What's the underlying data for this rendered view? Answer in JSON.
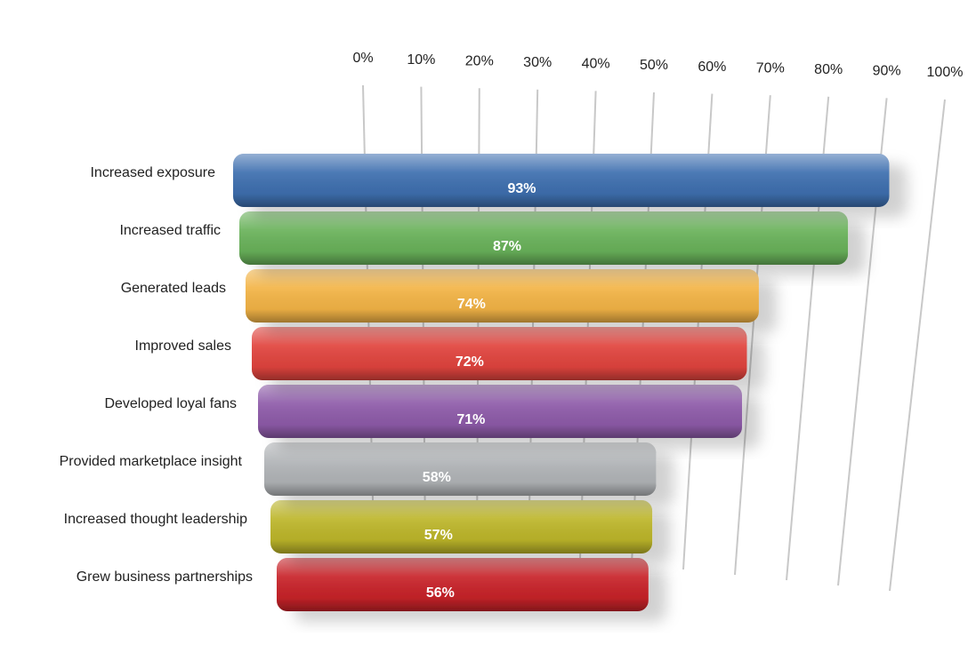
{
  "chart_data": {
    "type": "bar",
    "orientation": "horizontal",
    "categories": [
      "Increased exposure",
      "Increased traffic",
      "Generated leads",
      "Improved sales",
      "Developed loyal fans",
      "Provided marketplace insight",
      "Increased thought leadership",
      "Grew business partnerships"
    ],
    "values": [
      93,
      87,
      74,
      72,
      71,
      58,
      57,
      56
    ],
    "value_labels": [
      "93%",
      "87%",
      "74%",
      "72%",
      "71%",
      "58%",
      "57%",
      "56%"
    ],
    "colors": [
      "#3e6faf",
      "#69b25a",
      "#f3b446",
      "#e1443e",
      "#8e5ba9",
      "#b1b4b7",
      "#bdb62a",
      "#c82329"
    ],
    "xlim": [
      0,
      100
    ],
    "xticks": [
      {
        "value": 0,
        "label": "0%"
      },
      {
        "value": 10,
        "label": "10%"
      },
      {
        "value": 20,
        "label": "20%"
      },
      {
        "value": 30,
        "label": "30%"
      },
      {
        "value": 40,
        "label": "40%"
      },
      {
        "value": 50,
        "label": "50%"
      },
      {
        "value": 60,
        "label": "60%"
      },
      {
        "value": 70,
        "label": "70%"
      },
      {
        "value": 80,
        "label": "80%"
      },
      {
        "value": 90,
        "label": "90%"
      },
      {
        "value": 100,
        "label": "100%"
      }
    ],
    "grid": true
  }
}
